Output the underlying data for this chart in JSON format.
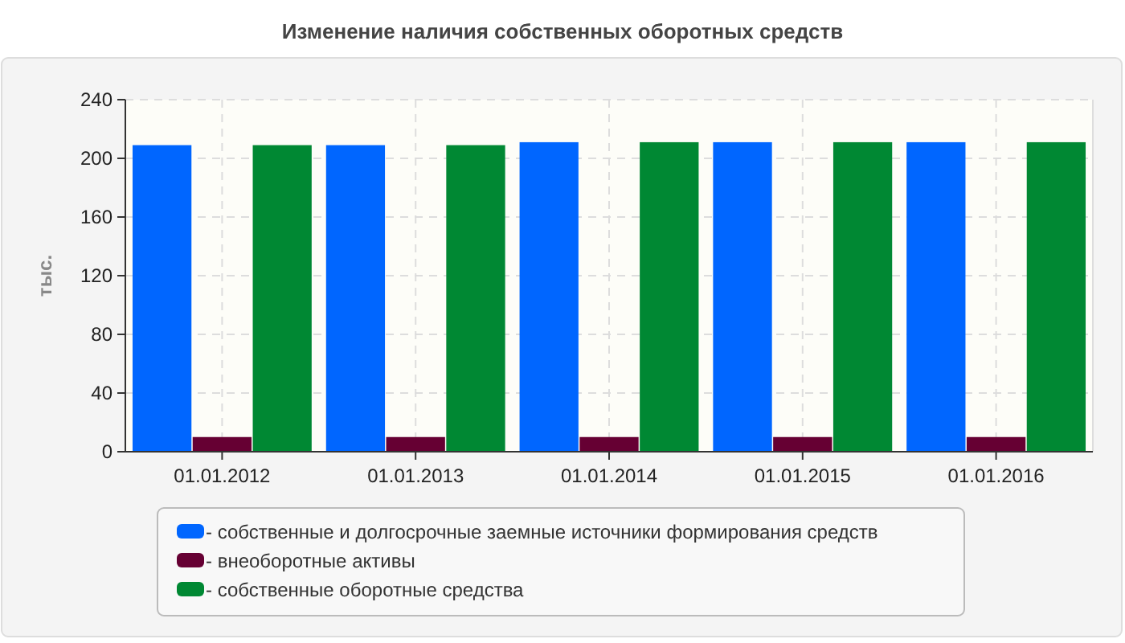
{
  "chart_data": {
    "type": "bar",
    "title": "Изменение наличия собственных оборотных средств",
    "ylabel": "тыс.",
    "categories": [
      "01.01.2012",
      "01.01.2013",
      "01.01.2014",
      "01.01.2015",
      "01.01.2016"
    ],
    "series": [
      {
        "name": "- собственные и долгосрочные заемные источники формирования средств",
        "color": "#0066ff",
        "values": [
          209,
          209,
          211,
          211,
          211
        ]
      },
      {
        "name": "- внеоборотные активы",
        "color": "#660033",
        "values": [
          10,
          10,
          10,
          10,
          10
        ]
      },
      {
        "name": "- собственные оборотные средства",
        "color": "#008833",
        "values": [
          209,
          209,
          211,
          211,
          211
        ]
      }
    ],
    "ylim": [
      0,
      240
    ],
    "yticks": [
      0,
      40,
      80,
      120,
      160,
      200,
      240
    ],
    "grid": true,
    "legend": "bottom"
  }
}
